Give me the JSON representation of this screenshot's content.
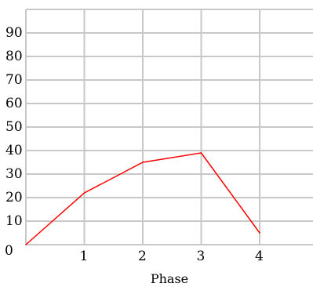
{
  "chart_data": {
    "type": "line",
    "title": "",
    "xlabel": "Phase",
    "ylabel": "",
    "xlim": [
      0,
      5
    ],
    "ylim": [
      0,
      100
    ],
    "grid": true,
    "x_ticks": [
      "0",
      "1",
      "2",
      "3",
      "4"
    ],
    "y_ticks": [
      "10",
      "20",
      "30",
      "40",
      "50",
      "60",
      "70",
      "80",
      "90"
    ],
    "series": [
      {
        "color": "#ff0000",
        "x": [
          0,
          1,
          2,
          3,
          4
        ],
        "y": [
          0,
          22,
          35,
          39,
          5
        ]
      }
    ]
  }
}
